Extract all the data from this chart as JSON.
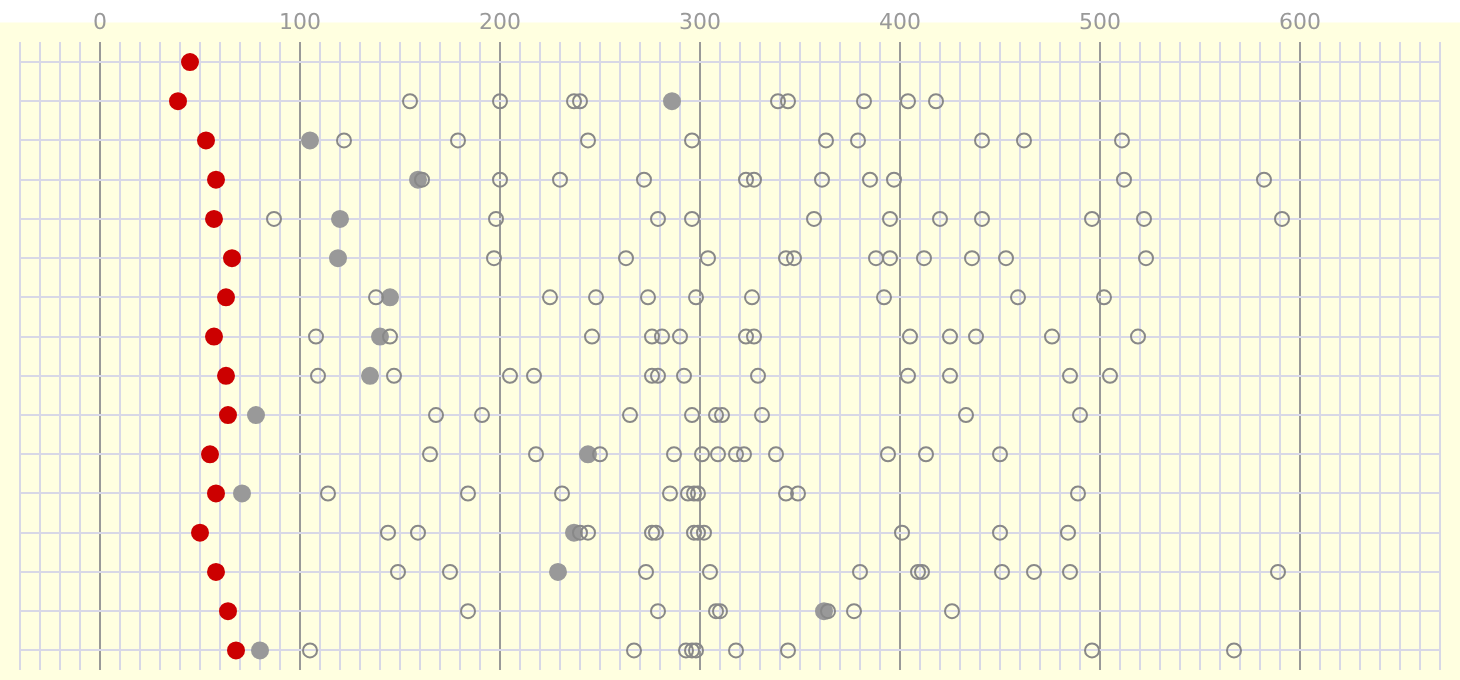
{
  "chart_data": {
    "type": "scatter",
    "orientation": "horizontal",
    "grid": true,
    "legend": false,
    "tick_labels": "x",
    "marker": "circle",
    "categories": [
      null,
      null,
      null,
      null,
      null,
      null,
      null,
      null,
      null,
      null,
      null,
      null,
      null,
      null,
      null,
      null
    ],
    "xlim": [
      -40,
      670
    ],
    "xticks": [
      {
        "value": -40,
        "label": null
      },
      {
        "value": -30,
        "label": null
      },
      {
        "value": -20,
        "label": null
      },
      {
        "value": -10,
        "label": null
      },
      0,
      {
        "value": 10,
        "label": null
      },
      {
        "value": 20,
        "label": null
      },
      {
        "value": 30,
        "label": null
      },
      {
        "value": 40,
        "label": null
      },
      {
        "value": 50,
        "label": null
      },
      {
        "value": 60,
        "label": null
      },
      {
        "value": 70,
        "label": null
      },
      {
        "value": 80,
        "label": null
      },
      {
        "value": 90,
        "label": null
      },
      100,
      {
        "value": 110,
        "label": null
      },
      {
        "value": 120,
        "label": null
      },
      {
        "value": 130,
        "label": null
      },
      {
        "value": 140,
        "label": null
      },
      {
        "value": 150,
        "label": null
      },
      {
        "value": 160,
        "label": null
      },
      {
        "value": 170,
        "label": null
      },
      {
        "value": 180,
        "label": null
      },
      {
        "value": 190,
        "label": null
      },
      200,
      {
        "value": 210,
        "label": null
      },
      {
        "value": 220,
        "label": null
      },
      {
        "value": 230,
        "label": null
      },
      {
        "value": 240,
        "label": null
      },
      {
        "value": 250,
        "label": null
      },
      {
        "value": 260,
        "label": null
      },
      {
        "value": 270,
        "label": null
      },
      {
        "value": 280,
        "label": null
      },
      {
        "value": 290,
        "label": null
      },
      300,
      {
        "value": 310,
        "label": null
      },
      {
        "value": 320,
        "label": null
      },
      {
        "value": 330,
        "label": null
      },
      {
        "value": 340,
        "label": null
      },
      {
        "value": 350,
        "label": null
      },
      {
        "value": 360,
        "label": null
      },
      {
        "value": 370,
        "label": null
      },
      {
        "value": 380,
        "label": null
      },
      {
        "value": 390,
        "label": null
      },
      400,
      {
        "value": 410,
        "label": null
      },
      {
        "value": 420,
        "label": null
      },
      {
        "value": 430,
        "label": null
      },
      {
        "value": 440,
        "label": null
      },
      {
        "value": 450,
        "label": null
      },
      {
        "value": 460,
        "label": null
      },
      {
        "value": 470,
        "label": null
      },
      {
        "value": 480,
        "label": null
      },
      {
        "value": 490,
        "label": null
      },
      500,
      {
        "value": 510,
        "label": null
      },
      {
        "value": 520,
        "label": null
      },
      {
        "value": 530,
        "label": null
      },
      {
        "value": 540,
        "label": null
      },
      {
        "value": 550,
        "label": null
      },
      {
        "value": 560,
        "label": null
      },
      {
        "value": 570,
        "label": null
      },
      {
        "value": 580,
        "label": null
      },
      {
        "value": 590,
        "label": null
      },
      600,
      {
        "value": 610,
        "label": null
      },
      {
        "value": 620,
        "label": null
      },
      {
        "value": 630,
        "label": null
      },
      {
        "value": 640,
        "label": null
      },
      {
        "value": 650,
        "label": null
      },
      {
        "value": 660,
        "label": null
      },
      {
        "value": 670,
        "label": null
      }
    ],
    "series": [
      {
        "color": "#888888",
        "values": [
          null,
          155,
          122,
          161,
          87,
          197,
          138,
          108,
          109,
          168,
          165,
          114,
          144,
          149,
          184,
          105
        ]
      },
      {
        "color": "#888888",
        "values": [
          null,
          200,
          179,
          200,
          198,
          263,
          225,
          145,
          147,
          191,
          218,
          184,
          159,
          175,
          279,
          267
        ]
      },
      {
        "color": "#888888",
        "values": [
          null,
          237,
          244,
          230,
          279,
          304,
          248,
          246,
          205,
          265,
          250,
          231,
          240,
          273,
          308,
          293
        ]
      },
      {
        "color": "#888888",
        "values": [
          null,
          240,
          296,
          272,
          296,
          343,
          274,
          276,
          217,
          296,
          287,
          285,
          244,
          305,
          310,
          296
        ]
      },
      {
        "color": "#888888",
        "values": [
          null,
          339,
          363,
          323,
          357,
          347,
          298,
          281,
          276,
          308,
          301,
          294,
          276,
          380,
          364,
          298
        ]
      },
      {
        "color": "#888888",
        "values": [
          null,
          344,
          379,
          327,
          395,
          388,
          326,
          290,
          279,
          311,
          309,
          297,
          278,
          409,
          377,
          318
        ]
      },
      {
        "color": "#888888",
        "values": [
          null,
          382,
          441,
          361,
          420,
          395,
          392,
          323,
          292,
          331,
          318,
          299,
          297,
          411,
          426,
          344
        ]
      },
      {
        "color": "#888888",
        "values": [
          null,
          404,
          462,
          385,
          441,
          412,
          459,
          327,
          329,
          433,
          322,
          343,
          299,
          451,
          null,
          496
        ]
      },
      {
        "color": "#888888",
        "values": [
          null,
          418,
          511,
          397,
          496,
          436,
          502,
          405,
          404,
          490,
          338,
          349,
          302,
          467,
          null,
          567
        ]
      },
      {
        "color": "#888888",
        "values": [
          null,
          null,
          null,
          512,
          522,
          453,
          null,
          425,
          425,
          null,
          394,
          489,
          401,
          485,
          null,
          null
        ]
      },
      {
        "color": "#888888",
        "values": [
          null,
          null,
          null,
          582,
          591,
          523,
          null,
          438,
          485,
          null,
          413,
          null,
          450,
          589,
          null,
          null
        ]
      },
      {
        "color": "#888888",
        "values": [
          null,
          null,
          null,
          null,
          null,
          null,
          null,
          476,
          505,
          null,
          450,
          null,
          484,
          null,
          null,
          null
        ]
      },
      {
        "color": "#888888",
        "values": [
          null,
          null,
          null,
          null,
          null,
          null,
          null,
          519,
          null,
          null,
          null,
          null,
          null,
          null,
          null,
          null
        ]
      },
      {
        "color": "#999999",
        "marker": "circle",
        "values": [
          null,
          286,
          105,
          159,
          120,
          119,
          145,
          140,
          135,
          78,
          244,
          71,
          237,
          229,
          362,
          80
        ]
      },
      {
        "color": "#cc0000",
        "marker": "circle",
        "values": [
          45,
          39,
          53,
          58,
          57,
          66,
          63,
          57,
          63,
          64,
          55,
          58,
          50,
          58,
          64,
          68
        ]
      }
    ]
  }
}
